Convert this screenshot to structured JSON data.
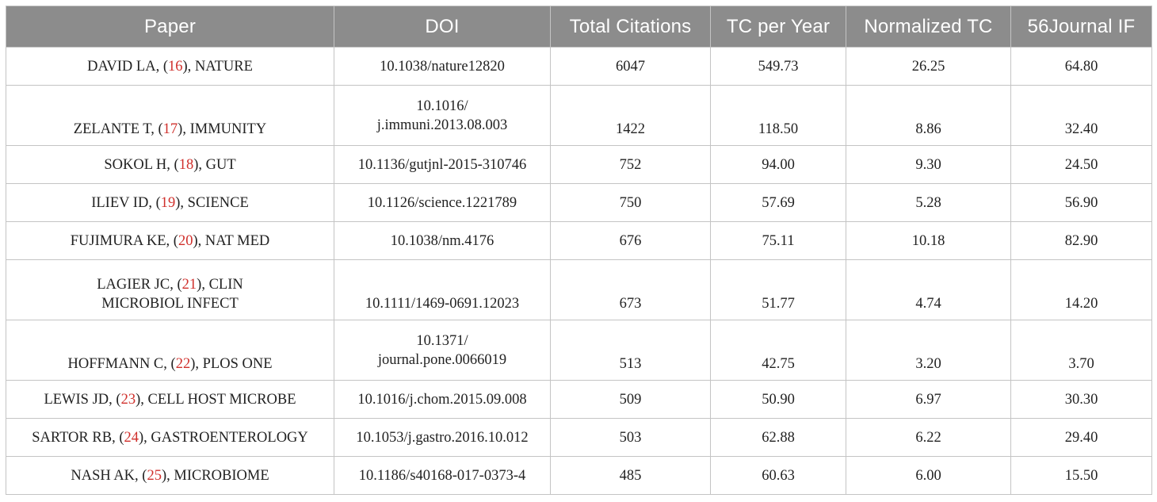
{
  "headers": [
    "Paper",
    "DOI",
    "Total Citations",
    "TC per Year",
    "Normalized TC",
    "56Journal IF"
  ],
  "rows": [
    {
      "author": "DAVID LA",
      "ref": "16",
      "journal": "NATURE",
      "journal_lines": [
        "NATURE"
      ],
      "paper_oneline": true,
      "doi": "10.1038/nature12820",
      "doi_lines": [
        "10.1038/nature12820"
      ],
      "tc": "6047",
      "tc_year": "549.73",
      "ntc": "26.25",
      "jif": "64.80"
    },
    {
      "author": "ZELANTE T",
      "ref": "17",
      "journal": "IMMUNITY",
      "paper_oneline": true,
      "doi_lines": [
        "10.1016/",
        "j.immuni.2013.08.003"
      ],
      "tc": "1422",
      "tc_year": "118.50",
      "ntc": "8.86",
      "jif": "32.40"
    },
    {
      "author": "SOKOL H",
      "ref": "18",
      "journal": "GUT",
      "paper_oneline": true,
      "doi_lines": [
        "10.1136/gutjnl-2015-310746"
      ],
      "tc": "752",
      "tc_year": "94.00",
      "ntc": "9.30",
      "jif": "24.50"
    },
    {
      "author": "ILIEV ID",
      "ref": "19",
      "journal": "SCIENCE",
      "paper_oneline": true,
      "doi_lines": [
        "10.1126/science.1221789"
      ],
      "tc": "750",
      "tc_year": "57.69",
      "ntc": "5.28",
      "jif": "56.90"
    },
    {
      "author": "FUJIMURA KE",
      "ref": "20",
      "journal": "NAT MED",
      "paper_oneline": true,
      "doi_lines": [
        "10.1038/nm.4176"
      ],
      "tc": "676",
      "tc_year": "75.11",
      "ntc": "10.18",
      "jif": "82.90"
    },
    {
      "author": "LAGIER JC",
      "ref": "21",
      "journal": "CLIN",
      "journal_line2": "MICROBIOL INFECT",
      "paper_oneline": false,
      "doi_lines": [
        "10.1111/1469-0691.12023"
      ],
      "tc": "673",
      "tc_year": "51.77",
      "ntc": "4.74",
      "jif": "14.20"
    },
    {
      "author": "HOFFMANN C",
      "ref": "22",
      "journal": "PLOS ONE",
      "paper_oneline": true,
      "doi_lines": [
        "10.1371/",
        "journal.pone.0066019"
      ],
      "tc": "513",
      "tc_year": "42.75",
      "ntc": "3.20",
      "jif": "3.70"
    },
    {
      "author": "LEWIS JD",
      "ref": "23",
      "journal": "CELL HOST MICROBE",
      "paper_oneline": true,
      "doi_lines": [
        "10.1016/j.chom.2015.09.008"
      ],
      "tc": "509",
      "tc_year": "50.90",
      "ntc": "6.97",
      "jif": "30.30"
    },
    {
      "author": "SARTOR RB",
      "ref": "24",
      "journal": "GASTROENTEROLOGY",
      "paper_oneline": true,
      "doi_lines": [
        "10.1053/j.gastro.2016.10.012"
      ],
      "tc": "503",
      "tc_year": "62.88",
      "ntc": "6.22",
      "jif": "29.40"
    },
    {
      "author": "NASH AK",
      "ref": "25",
      "journal": "MICROBIOME",
      "paper_oneline": true,
      "doi_lines": [
        "10.1186/s40168-017-0373-4"
      ],
      "tc": "485",
      "tc_year": "60.63",
      "ntc": "6.00",
      "jif": "15.50"
    }
  ],
  "colors": {
    "header_bg": "#8c8c8c",
    "header_text": "#ffffff",
    "border": "#c4c4c4",
    "ref_link": "#d0302c"
  }
}
